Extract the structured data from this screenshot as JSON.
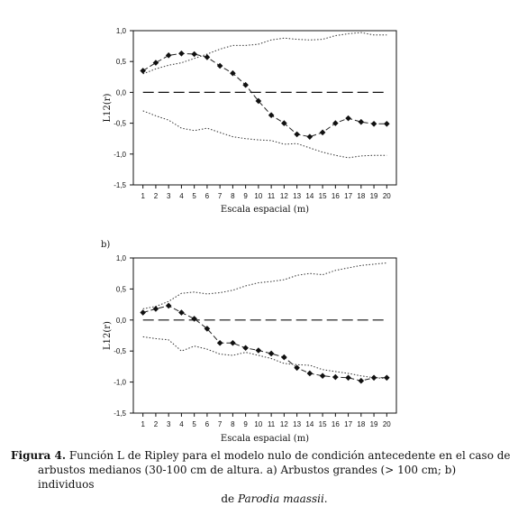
{
  "chart_data": [
    {
      "type": "line",
      "panel_label": "",
      "xlabel": "Escala espacial (m)",
      "ylabel": "L12(r)",
      "x": [
        1,
        2,
        3,
        4,
        5,
        6,
        7,
        8,
        9,
        10,
        11,
        12,
        13,
        14,
        15,
        16,
        17,
        18,
        19,
        20
      ],
      "ylim": [
        -1.5,
        1.0
      ],
      "yticks": [
        "1,0",
        "0,5",
        "0,0",
        "-0,5",
        "-1,0",
        "-1,5"
      ],
      "ytick_values": [
        1.0,
        0.5,
        0.0,
        -0.5,
        -1.0,
        -1.5
      ],
      "xticks": [
        "1",
        "2",
        "3",
        "4",
        "5",
        "6",
        "7",
        "8",
        "9",
        "10",
        "11",
        "12",
        "13",
        "14",
        "15",
        "16",
        "17",
        "18",
        "19",
        "20"
      ],
      "grid": false,
      "series": [
        {
          "values": [
            0.35,
            0.48,
            0.6,
            0.63,
            0.62,
            0.57,
            0.43,
            0.31,
            0.12,
            -0.14,
            -0.37,
            -0.5,
            -0.68,
            -0.72,
            -0.65,
            -0.5,
            -0.42,
            -0.48,
            -0.51,
            -0.51
          ]
        },
        {
          "values": [
            0.3,
            0.38,
            0.44,
            0.48,
            0.55,
            0.62,
            0.7,
            0.76,
            0.76,
            0.78,
            0.85,
            0.88,
            0.86,
            0.85,
            0.86,
            0.92,
            0.95,
            0.97,
            0.93,
            0.93
          ]
        },
        {
          "values": [
            -0.3,
            -0.38,
            -0.45,
            -0.58,
            -0.62,
            -0.58,
            -0.65,
            -0.72,
            -0.75,
            -0.77,
            -0.78,
            -0.84,
            -0.83,
            -0.9,
            -0.97,
            -1.02,
            -1.06,
            -1.03,
            -1.02,
            -1.02
          ]
        },
        {
          "values": [
            0,
            0,
            0,
            0,
            0,
            0,
            0,
            0,
            0,
            0,
            0,
            0,
            0,
            0,
            0,
            0,
            0,
            0,
            0,
            0
          ]
        }
      ]
    },
    {
      "type": "line",
      "panel_label": "b)",
      "xlabel": "Escala espacial (m)",
      "ylabel": "L12(r)",
      "x": [
        1,
        2,
        3,
        4,
        5,
        6,
        7,
        8,
        9,
        10,
        11,
        12,
        13,
        14,
        15,
        16,
        17,
        18,
        19,
        20
      ],
      "ylim": [
        -1.5,
        1.0
      ],
      "yticks": [
        "1,0",
        "0,5",
        "0,0",
        "-0,5",
        "-1,0",
        "-1,5"
      ],
      "ytick_values": [
        1.0,
        0.5,
        0.0,
        -0.5,
        -1.0,
        -1.5
      ],
      "xticks": [
        "1",
        "2",
        "3",
        "4",
        "5",
        "6",
        "7",
        "8",
        "9",
        "10",
        "11",
        "12",
        "13",
        "14",
        "15",
        "16",
        "17",
        "18",
        "19",
        "20"
      ],
      "grid": false,
      "series": [
        {
          "values": [
            0.12,
            0.18,
            0.23,
            0.12,
            0.02,
            -0.14,
            -0.37,
            -0.37,
            -0.45,
            -0.49,
            -0.54,
            -0.6,
            -0.77,
            -0.86,
            -0.9,
            -0.92,
            -0.93,
            -0.98,
            -0.93,
            -0.93
          ]
        },
        {
          "values": [
            0.18,
            0.22,
            0.3,
            0.43,
            0.45,
            0.42,
            0.44,
            0.48,
            0.55,
            0.6,
            0.62,
            0.65,
            0.72,
            0.75,
            0.73,
            0.8,
            0.84,
            0.88,
            0.9,
            0.92
          ]
        },
        {
          "values": [
            -0.27,
            -0.3,
            -0.32,
            -0.5,
            -0.42,
            -0.47,
            -0.55,
            -0.57,
            -0.52,
            -0.57,
            -0.62,
            -0.7,
            -0.72,
            -0.73,
            -0.8,
            -0.83,
            -0.86,
            -0.9,
            -0.93,
            -0.94
          ]
        },
        {
          "values": [
            0,
            0,
            0,
            0,
            0,
            0,
            0,
            0,
            0,
            0,
            0,
            0,
            0,
            0,
            0,
            0,
            0,
            0,
            0,
            0
          ]
        }
      ]
    }
  ],
  "caption": {
    "label": "Figura 4.",
    "line1": " Función L de Ripley para el modelo nulo de condición antecedente en el caso de",
    "line2": "arbustos medianos (30-100 cm de altura. a) Arbustos grandes (> 100 cm; b) individuos",
    "line3_prefix": "de ",
    "line3_italic": "Parodia maassii",
    "line3_suffix": "."
  }
}
